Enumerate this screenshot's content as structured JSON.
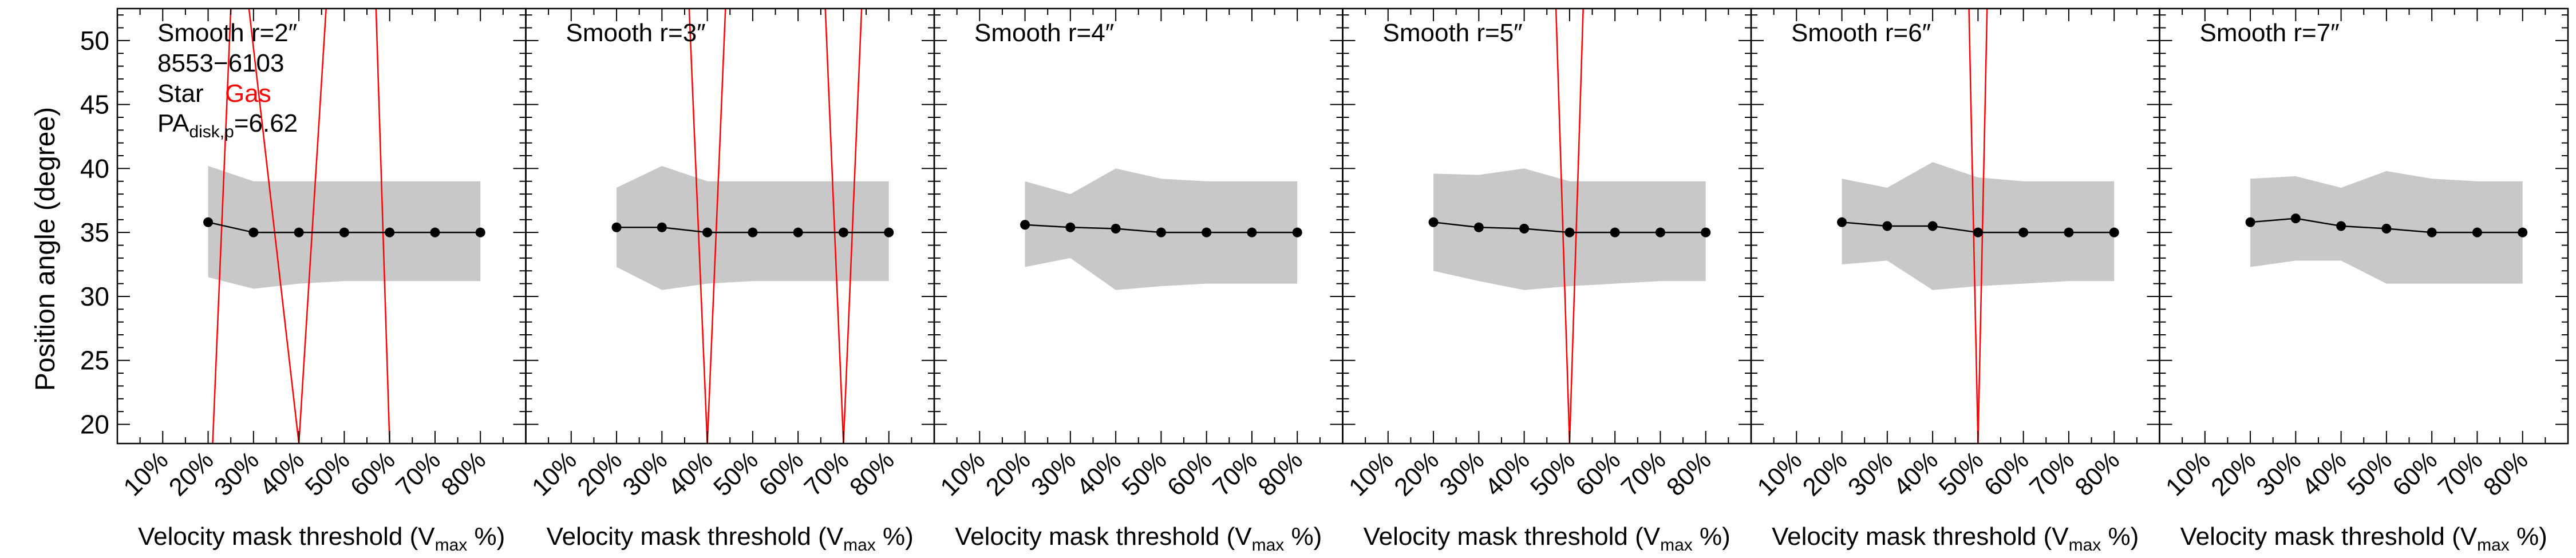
{
  "figure": {
    "ylabel": "Position angle (degree)",
    "xlabel_main": "Velocity mask threshold (V",
    "xlabel_sub": "max",
    "xlabel_tail": " %)",
    "legend": {
      "id": "8553−6103",
      "star_label": "Star",
      "gas_label": "Gas",
      "pa_main": "PA",
      "pa_sub": "disk,p",
      "pa_value": "=6.62"
    }
  },
  "chart_data": {
    "type": "line",
    "xticks": [
      "10%",
      "20%",
      "30%",
      "40%",
      "50%",
      "60%",
      "70%",
      "80%"
    ],
    "xlim": [
      0,
      90
    ],
    "ylim": [
      18.5,
      52.5
    ],
    "yticks": [
      20,
      25,
      30,
      35,
      40,
      45,
      50
    ],
    "colors": {
      "star": "#000000",
      "band": "#c8c8c8",
      "gas": "#ff0000"
    },
    "panels": [
      {
        "title": "Smooth r=2″",
        "x": [
          20,
          30,
          40,
          50,
          60,
          70,
          80
        ],
        "star_pa": [
          35.8,
          35.0,
          35.0,
          35.0,
          35.0,
          35.0,
          35.0
        ],
        "err_upper": [
          40.2,
          39.0,
          39.0,
          39.0,
          39.0,
          39.0,
          39.0
        ],
        "err_lower": [
          31.5,
          30.6,
          31.0,
          31.2,
          31.2,
          31.2,
          31.2
        ],
        "gas_lines": [
          [
            [
              21,
              18.5
            ],
            [
              25,
              52.5
            ]
          ],
          [
            [
              29,
              52.5
            ],
            [
              40,
              18.5
            ]
          ],
          [
            [
              40,
              18.5
            ],
            [
              46,
              52.5
            ]
          ],
          [
            [
              57,
              52.5
            ],
            [
              60,
              18.5
            ]
          ]
        ]
      },
      {
        "title": "Smooth r=3″",
        "x": [
          20,
          30,
          40,
          50,
          60,
          70,
          80
        ],
        "star_pa": [
          35.4,
          35.4,
          35.0,
          35.0,
          35.0,
          35.0,
          35.0
        ],
        "err_upper": [
          38.5,
          40.2,
          39.0,
          39.0,
          39.0,
          39.0,
          39.0
        ],
        "err_lower": [
          32.3,
          30.5,
          31.0,
          31.2,
          31.2,
          31.2,
          31.2
        ],
        "gas_lines": [
          [
            [
              36,
              52.5
            ],
            [
              40,
              18.5
            ]
          ],
          [
            [
              40,
              18.5
            ],
            [
              44,
              52.5
            ]
          ],
          [
            [
              66,
              52.5
            ],
            [
              70,
              18.5
            ]
          ],
          [
            [
              70,
              18.5
            ],
            [
              74,
              52.5
            ]
          ]
        ]
      },
      {
        "title": "Smooth r=4″",
        "x": [
          20,
          30,
          40,
          50,
          60,
          70,
          80
        ],
        "star_pa": [
          35.6,
          35.4,
          35.3,
          35.0,
          35.0,
          35.0,
          35.0
        ],
        "err_upper": [
          39.0,
          38.0,
          40.0,
          39.2,
          39.0,
          39.0,
          39.0
        ],
        "err_lower": [
          32.3,
          33.0,
          30.5,
          30.8,
          31.0,
          31.0,
          31.0
        ],
        "gas_lines": []
      },
      {
        "title": "Smooth r=5″",
        "x": [
          20,
          30,
          40,
          50,
          60,
          70,
          80
        ],
        "star_pa": [
          35.8,
          35.4,
          35.3,
          35.0,
          35.0,
          35.0,
          35.0
        ],
        "err_upper": [
          39.6,
          39.5,
          40.0,
          39.0,
          39.0,
          39.0,
          39.0
        ],
        "err_lower": [
          32.0,
          31.2,
          30.5,
          30.8,
          31.0,
          31.2,
          31.2
        ],
        "gas_lines": [
          [
            [
              47,
              52.5
            ],
            [
              50,
              18.5
            ]
          ],
          [
            [
              50,
              18.5
            ],
            [
              53,
              52.5
            ]
          ]
        ]
      },
      {
        "title": "Smooth r=6″",
        "x": [
          20,
          30,
          40,
          50,
          60,
          70,
          80
        ],
        "star_pa": [
          35.8,
          35.5,
          35.5,
          35.0,
          35.0,
          35.0,
          35.0
        ],
        "err_upper": [
          39.2,
          38.5,
          40.5,
          39.3,
          39.0,
          39.0,
          39.0
        ],
        "err_lower": [
          32.5,
          32.8,
          30.5,
          30.8,
          31.0,
          31.2,
          31.2
        ],
        "gas_lines": [
          [
            [
              48,
              52.5
            ],
            [
              50,
              18.5
            ]
          ],
          [
            [
              50,
              18.5
            ],
            [
              52,
              52.5
            ]
          ]
        ]
      },
      {
        "title": "Smooth r=7″",
        "x": [
          20,
          30,
          40,
          50,
          60,
          70,
          80
        ],
        "star_pa": [
          35.8,
          36.1,
          35.5,
          35.3,
          35.0,
          35.0,
          35.0
        ],
        "err_upper": [
          39.2,
          39.4,
          38.5,
          39.8,
          39.2,
          39.0,
          39.0
        ],
        "err_lower": [
          32.3,
          32.8,
          32.8,
          31.0,
          31.0,
          31.0,
          31.0
        ],
        "gas_lines": []
      }
    ]
  }
}
